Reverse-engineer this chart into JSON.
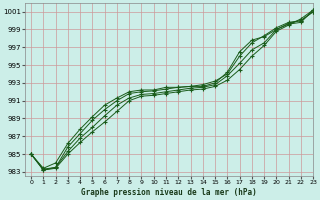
{
  "title": "Graphe pression niveau de la mer (hPa)",
  "background_color": "#cceee8",
  "grid_color": "#cc9999",
  "line_color": "#1a5c1a",
  "xlim": [
    -0.5,
    23
  ],
  "ylim": [
    982.5,
    1002
  ],
  "yticks": [
    983,
    985,
    987,
    989,
    991,
    993,
    995,
    997,
    999,
    1001
  ],
  "xticks": [
    0,
    1,
    2,
    3,
    4,
    5,
    6,
    7,
    8,
    9,
    10,
    11,
    12,
    13,
    14,
    15,
    16,
    17,
    18,
    19,
    20,
    21,
    22,
    23
  ],
  "series1": [
    985.0,
    983.2,
    983.4,
    985.0,
    986.3,
    987.5,
    988.6,
    989.8,
    991.0,
    991.5,
    991.6,
    991.8,
    992.0,
    992.2,
    992.3,
    992.6,
    993.3,
    994.5,
    996.0,
    997.2,
    998.8,
    999.5,
    1000.2,
    1001.2
  ],
  "series2": [
    985.0,
    983.2,
    983.5,
    985.3,
    986.8,
    988.0,
    989.3,
    990.5,
    991.3,
    991.7,
    991.8,
    992.0,
    992.2,
    992.4,
    992.5,
    992.8,
    993.8,
    995.2,
    996.7,
    997.5,
    999.0,
    999.7,
    1000.0,
    1001.0
  ],
  "series3": [
    985.0,
    983.3,
    983.5,
    985.8,
    987.3,
    988.8,
    990.0,
    991.0,
    991.8,
    992.0,
    992.1,
    992.3,
    992.5,
    992.6,
    992.8,
    993.2,
    994.0,
    996.0,
    997.5,
    998.3,
    999.2,
    999.8,
    1000.0,
    1001.0
  ],
  "series4": [
    985.0,
    983.4,
    984.0,
    986.2,
    987.8,
    989.2,
    990.5,
    991.3,
    992.0,
    992.2,
    992.2,
    992.5,
    992.5,
    992.6,
    992.6,
    993.0,
    994.2,
    996.5,
    997.8,
    998.2,
    999.0,
    999.6,
    999.8,
    1001.2
  ]
}
